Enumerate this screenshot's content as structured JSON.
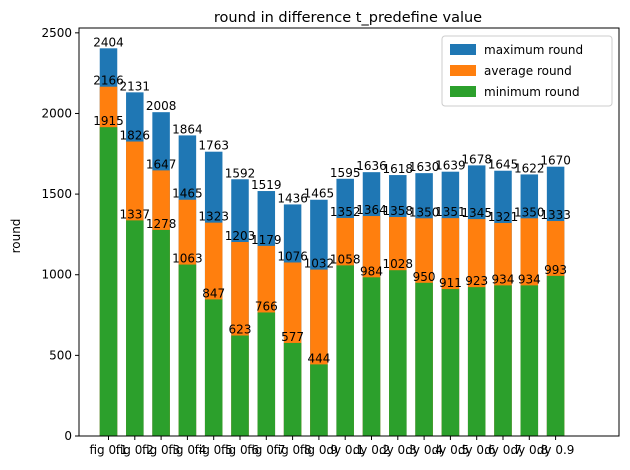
{
  "chart_data": {
    "type": "bar",
    "stacked_overlay": true,
    "title": "round in difference t_predefine value",
    "xlabel": "",
    "ylabel": "round",
    "ylim": [
      0,
      2530
    ],
    "yticks": [
      0,
      500,
      1000,
      1500,
      2000,
      2500
    ],
    "grid": false,
    "legend_position": "top-right",
    "categories": [
      "fig 0.1",
      "fig 0.2",
      "fig 0.3",
      "fig 0.4",
      "fig 0.5",
      "fig 0.6",
      "fig 0.7",
      "fig 0.8",
      "fig 0.9",
      "dy 0.1",
      "dy 0.2",
      "dy 0.3",
      "dy 0.4",
      "dy 0.5",
      "dy 0.6",
      "dy 0.7",
      "dy 0.8",
      "dy 0.9"
    ],
    "series": [
      {
        "name": " maximum round",
        "color": "#1f77b4",
        "values": [
          2404,
          2131,
          2008,
          1864,
          1763,
          1592,
          1519,
          1436,
          1465,
          1595,
          1636,
          1618,
          1630,
          1639,
          1678,
          1645,
          1622,
          1670
        ]
      },
      {
        "name": " average round",
        "color": "#ff7f0e",
        "values": [
          2166,
          1826,
          1647,
          1465,
          1323,
          1203,
          1179,
          1076,
          1032,
          1352,
          1364,
          1358,
          1350,
          1351,
          1345,
          1321,
          1350,
          1333
        ]
      },
      {
        "name": " minimum round",
        "color": "#2ca02c",
        "values": [
          1915,
          1337,
          1278,
          1063,
          847,
          623,
          766,
          577,
          444,
          1058,
          984,
          1028,
          950,
          911,
          923,
          934,
          934,
          993
        ]
      }
    ]
  }
}
